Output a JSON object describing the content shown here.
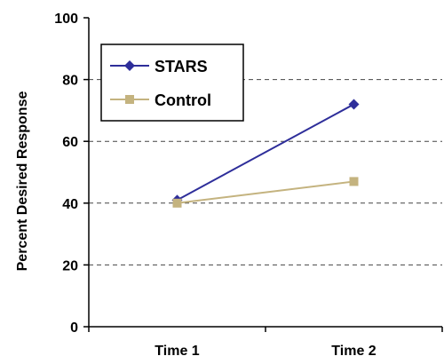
{
  "chart_data": {
    "type": "line",
    "categories": [
      "Time 1",
      "Time 2"
    ],
    "ylabel": "Percent Desired Response",
    "ylim": [
      0,
      100
    ],
    "yticks": [
      0,
      20,
      40,
      60,
      80,
      100
    ],
    "grid": "horizontal dashed",
    "legend": "top-left",
    "series": [
      {
        "name": "STARS",
        "values": [
          41,
          72
        ],
        "color": "#2e2e9a",
        "marker": "diamond"
      },
      {
        "name": "Control",
        "values": [
          40,
          47
        ],
        "color": "#c4b37f",
        "marker": "square"
      }
    ]
  }
}
